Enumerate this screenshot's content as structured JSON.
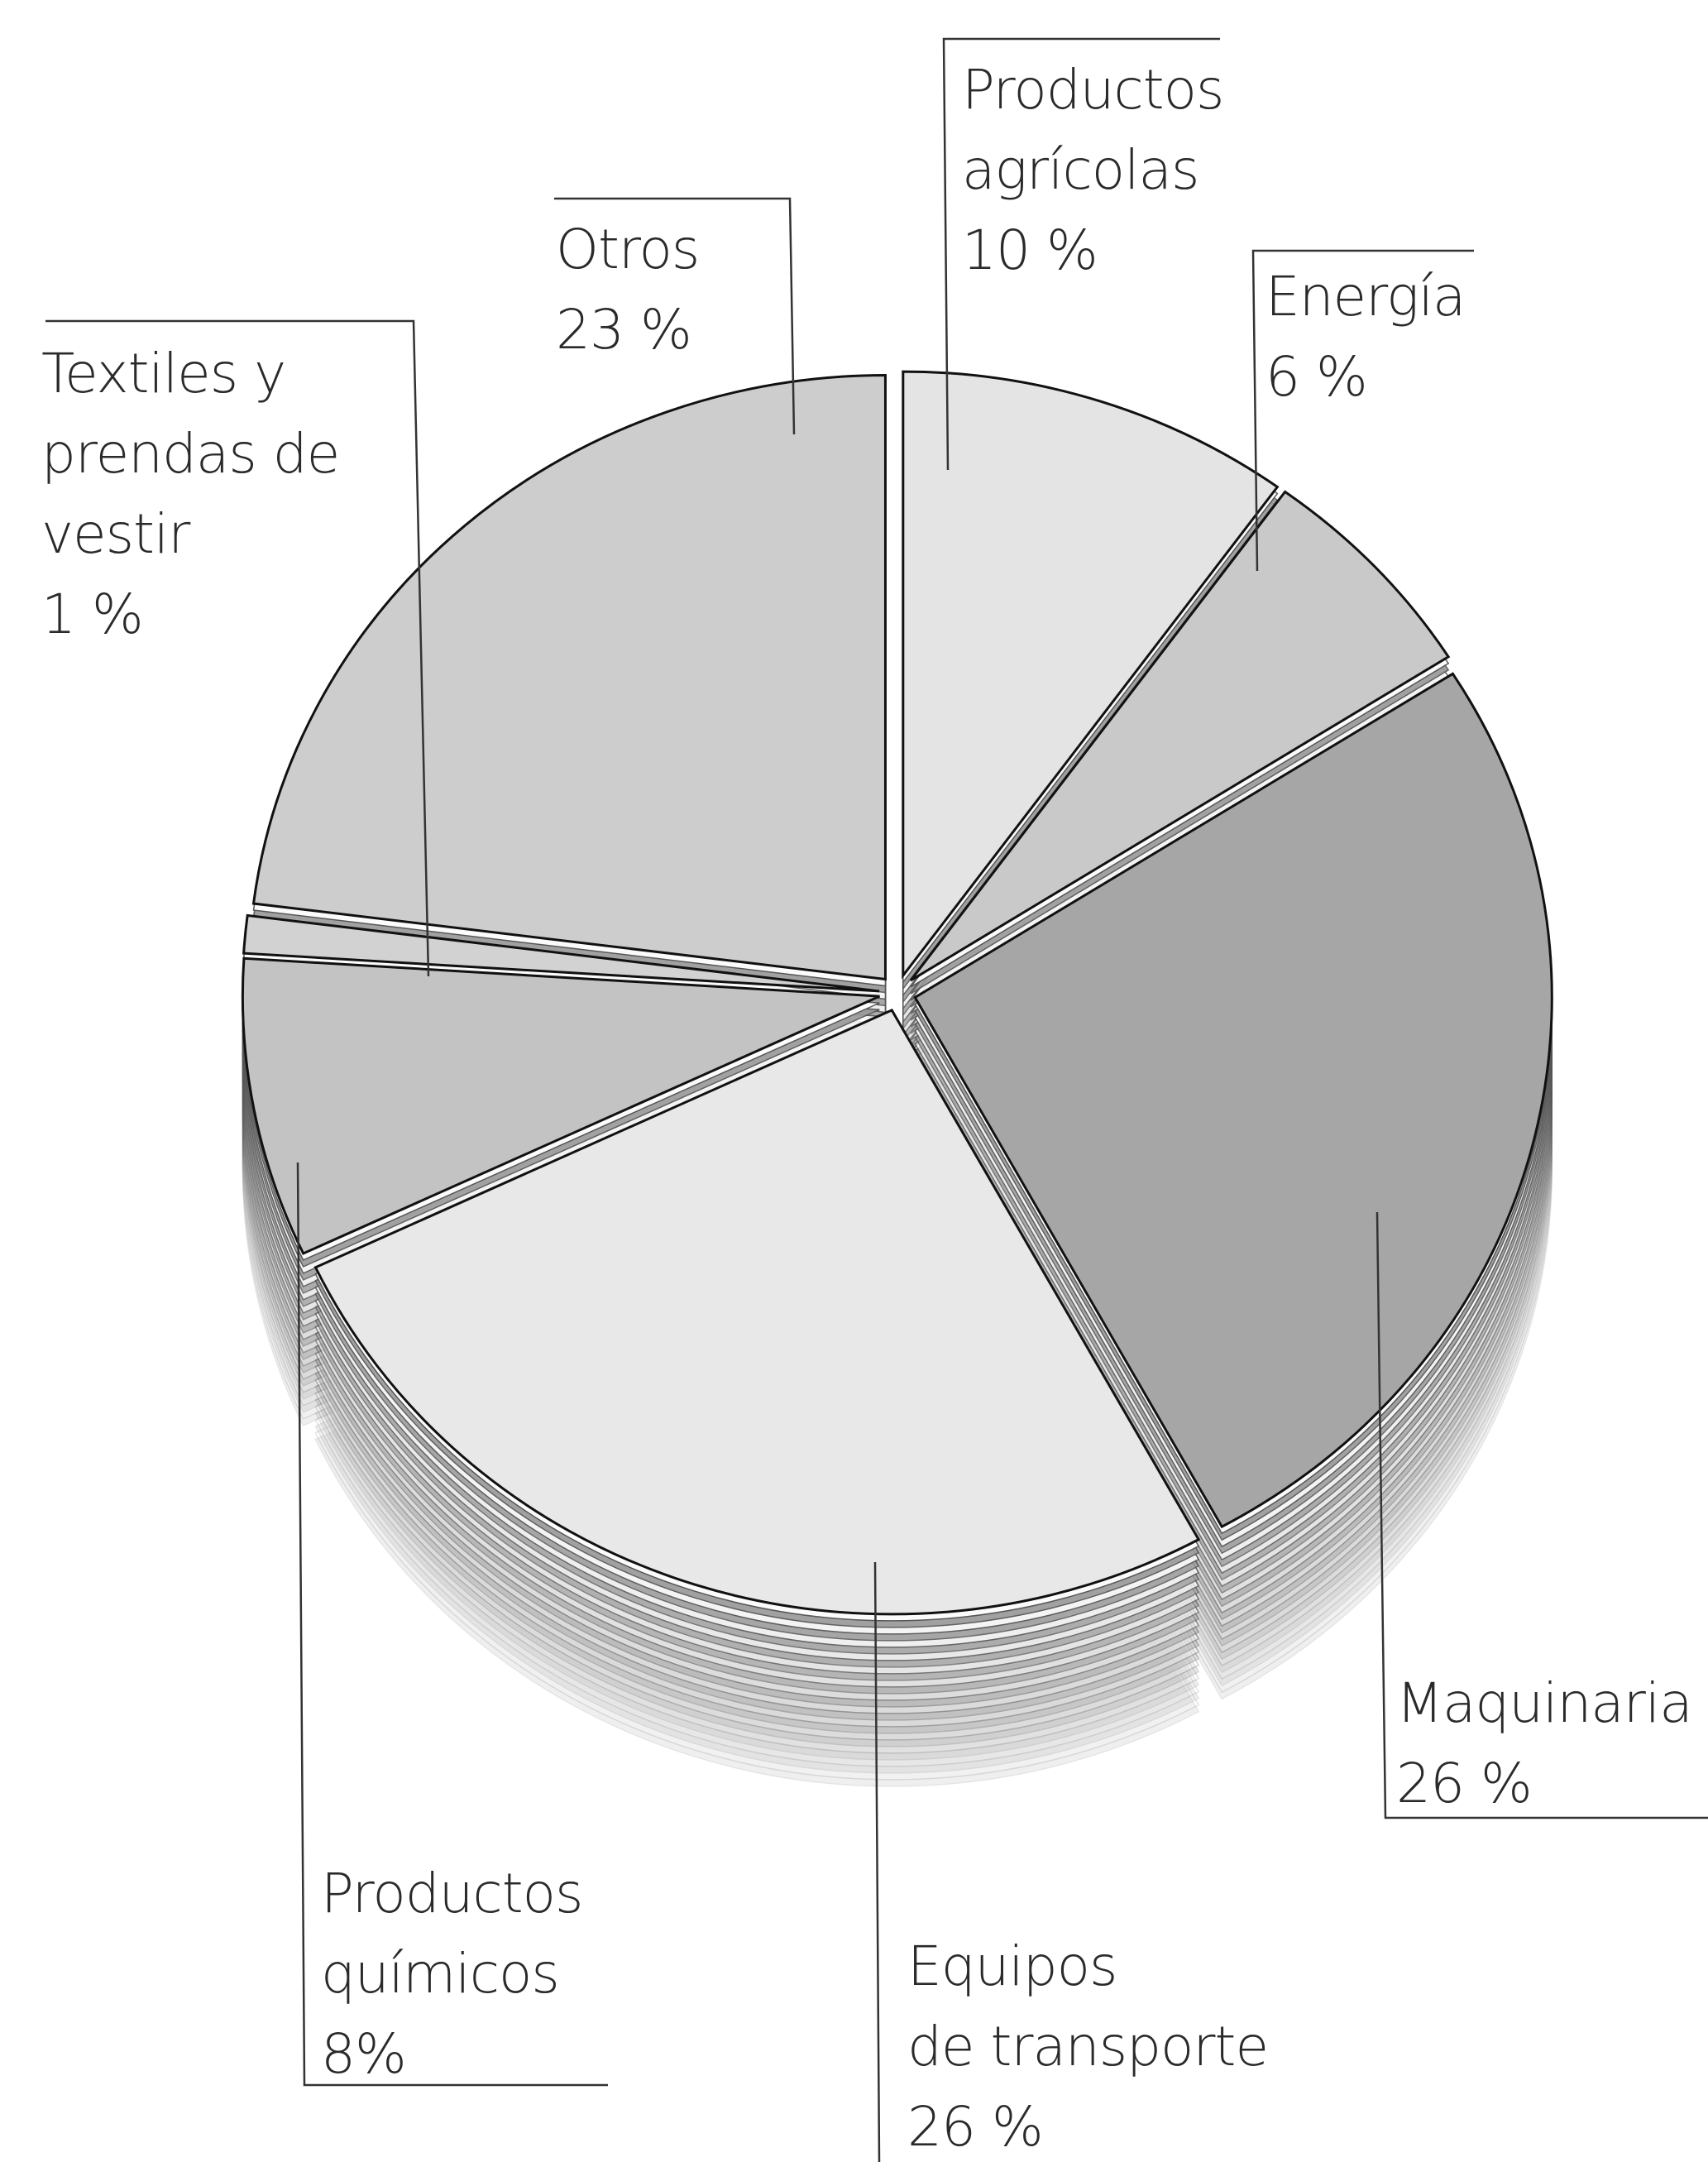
{
  "chart_data": {
    "type": "pie",
    "categories": [
      "Productos\nagrícolas",
      "Energía",
      "Maquinaria",
      "Equipos\nde transporte",
      "Productos\nquímicos",
      "Textiles y\nprendas de\nvestir",
      "Otros"
    ],
    "values": [
      10,
      6,
      26,
      26,
      8,
      1,
      23
    ],
    "value_labels": [
      "10 %",
      "6 %",
      "26 %",
      "26 %",
      "8%",
      "1 %",
      "23 %"
    ],
    "colors": [
      "#e4e4e4",
      "#c9c9c9",
      "#a6a6a6",
      "#e8e8e8",
      "#c3c3c3",
      "#d2d2d2",
      "#cdcdcd"
    ]
  }
}
